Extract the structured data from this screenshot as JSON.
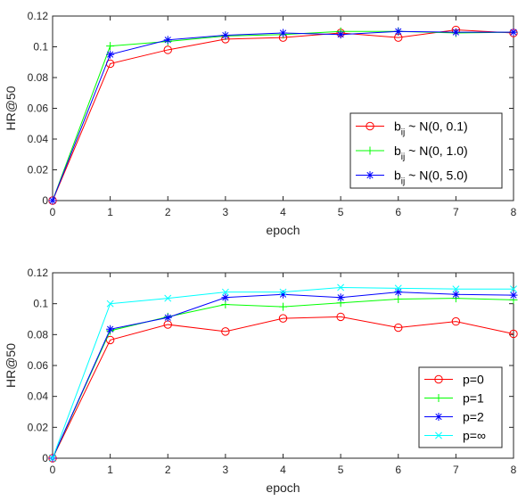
{
  "chart_data": [
    {
      "type": "line",
      "xlabel": "epoch",
      "ylabel": "HR@50",
      "xlim": [
        0,
        8
      ],
      "ylim": [
        0,
        0.12
      ],
      "xticks": [
        "0",
        "1",
        "2",
        "3",
        "4",
        "5",
        "6",
        "7",
        "8"
      ],
      "yticks": [
        "0",
        "0.02",
        "0.04",
        "0.06",
        "0.08",
        "0.1",
        "0.12"
      ],
      "grid": false,
      "legend_position": "bottom-right",
      "x": [
        0,
        1,
        2,
        3,
        4,
        5,
        6,
        7,
        8
      ],
      "series": [
        {
          "label_main": "b",
          "label_sub": "ij",
          "label_rest": " ~ N(0, 0.1)",
          "color": "#ff0000",
          "marker": "circle",
          "values": [
            0,
            0.089,
            0.098,
            0.105,
            0.106,
            0.109,
            0.106,
            0.111,
            0.109
          ]
        },
        {
          "label_main": "b",
          "label_sub": "ij",
          "label_rest": " ~ N(0, 1.0)",
          "color": "#00ff00",
          "marker": "plus",
          "values": [
            0,
            0.1005,
            0.1035,
            0.107,
            0.108,
            0.11,
            0.11,
            0.109,
            0.1095
          ]
        },
        {
          "label_main": "b",
          "label_sub": "ij",
          "label_rest": " ~ N(0, 5.0)",
          "color": "#0000ff",
          "marker": "asterisk",
          "values": [
            0,
            0.095,
            0.1045,
            0.1075,
            0.109,
            0.108,
            0.11,
            0.1095,
            0.1095
          ]
        }
      ]
    },
    {
      "type": "line",
      "xlabel": "epoch",
      "ylabel": "HR@50",
      "xlim": [
        0,
        8
      ],
      "ylim": [
        0,
        0.12
      ],
      "xticks": [
        "0",
        "1",
        "2",
        "3",
        "4",
        "5",
        "6",
        "7",
        "8"
      ],
      "yticks": [
        "0",
        "0.02",
        "0.04",
        "0.06",
        "0.08",
        "0.1",
        "0.12"
      ],
      "grid": false,
      "legend_position": "bottom-right",
      "x": [
        0,
        1,
        2,
        3,
        4,
        5,
        6,
        7,
        8
      ],
      "series": [
        {
          "label_main": "p=0",
          "label_sub": "",
          "label_rest": "",
          "color": "#ff0000",
          "marker": "circle",
          "values": [
            0,
            0.0765,
            0.0865,
            0.082,
            0.0905,
            0.0915,
            0.0845,
            0.0885,
            0.0805
          ]
        },
        {
          "label_main": "p=1",
          "label_sub": "",
          "label_rest": "",
          "color": "#00ff00",
          "marker": "plus",
          "values": [
            0,
            0.0825,
            0.0915,
            0.0995,
            0.098,
            0.1005,
            0.103,
            0.1035,
            0.1025
          ]
        },
        {
          "label_main": "p=2",
          "label_sub": "",
          "label_rest": "",
          "color": "#0000ff",
          "marker": "asterisk",
          "values": [
            0,
            0.0835,
            0.091,
            0.104,
            0.106,
            0.104,
            0.1075,
            0.106,
            0.1055
          ]
        },
        {
          "label_main": "p=∞",
          "label_sub": "",
          "label_rest": "",
          "color": "#00ffff",
          "marker": "cross",
          "values": [
            0,
            0.1,
            0.1035,
            0.1075,
            0.1075,
            0.1105,
            0.11,
            0.1095,
            0.1095
          ]
        }
      ]
    }
  ]
}
